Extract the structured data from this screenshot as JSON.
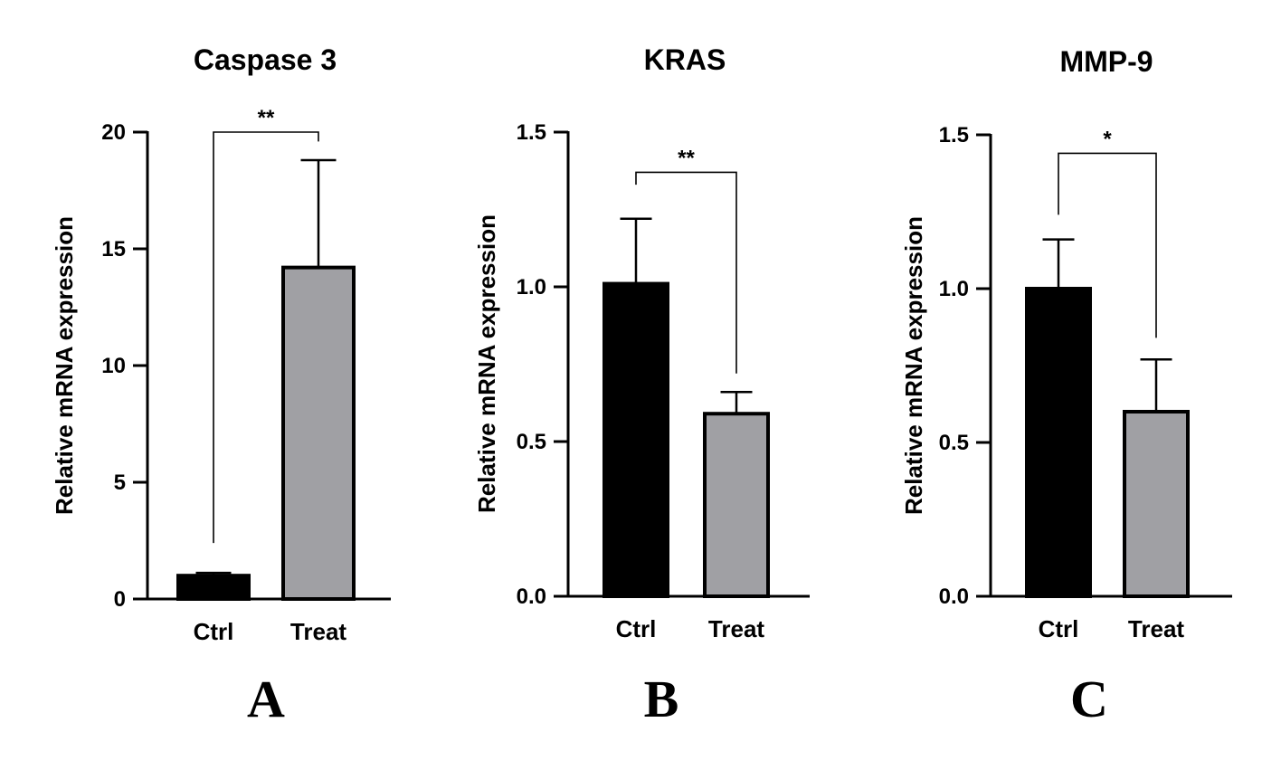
{
  "chart_data": [
    {
      "type": "bar",
      "title": "Caspase 3",
      "panel_label": "A",
      "ylabel": "Relative mRNA expression",
      "categories": [
        "Ctrl",
        "Treat"
      ],
      "values": [
        1.0,
        14.2
      ],
      "errors": [
        0.12,
        4.6
      ],
      "bar_colors": [
        "#000000",
        "#a0a0a4"
      ],
      "ylim": [
        0,
        20
      ],
      "yticks": [
        0,
        5,
        10,
        15,
        20
      ],
      "ytick_labels": [
        "0",
        "5",
        "10",
        "15",
        "20"
      ],
      "significance": "**",
      "bracket_y": 20,
      "bracket_left_y": 2.4,
      "bracket_right_y": 19.6
    },
    {
      "type": "bar",
      "title": "KRAS",
      "panel_label": "B",
      "ylabel": "Relative mRNA expression",
      "categories": [
        "Ctrl",
        "Treat"
      ],
      "values": [
        1.01,
        0.59
      ],
      "errors": [
        0.21,
        0.07
      ],
      "bar_colors": [
        "#000000",
        "#a0a0a4"
      ],
      "ylim": [
        0,
        1.5
      ],
      "yticks": [
        0,
        0.5,
        1.0,
        1.5
      ],
      "ytick_labels": [
        "0.0",
        "0.5",
        "1.0",
        "1.5"
      ],
      "significance": "**",
      "bracket_y": 1.37,
      "bracket_left_y": 1.33,
      "bracket_right_y": 0.72
    },
    {
      "type": "bar",
      "title": "MMP-9",
      "panel_label": "C",
      "ylabel": "Relative mRNA expression",
      "categories": [
        "Ctrl",
        "Treat"
      ],
      "values": [
        1.0,
        0.6
      ],
      "errors": [
        0.16,
        0.17
      ],
      "bar_colors": [
        "#000000",
        "#a0a0a4"
      ],
      "ylim": [
        0,
        1.5
      ],
      "yticks": [
        0,
        0.5,
        1.0,
        1.5
      ],
      "ytick_labels": [
        "0.0",
        "0.5",
        "1.0",
        "1.5"
      ],
      "significance": "*",
      "bracket_y": 1.44,
      "bracket_left_y": 1.24,
      "bracket_right_y": 0.84
    }
  ]
}
